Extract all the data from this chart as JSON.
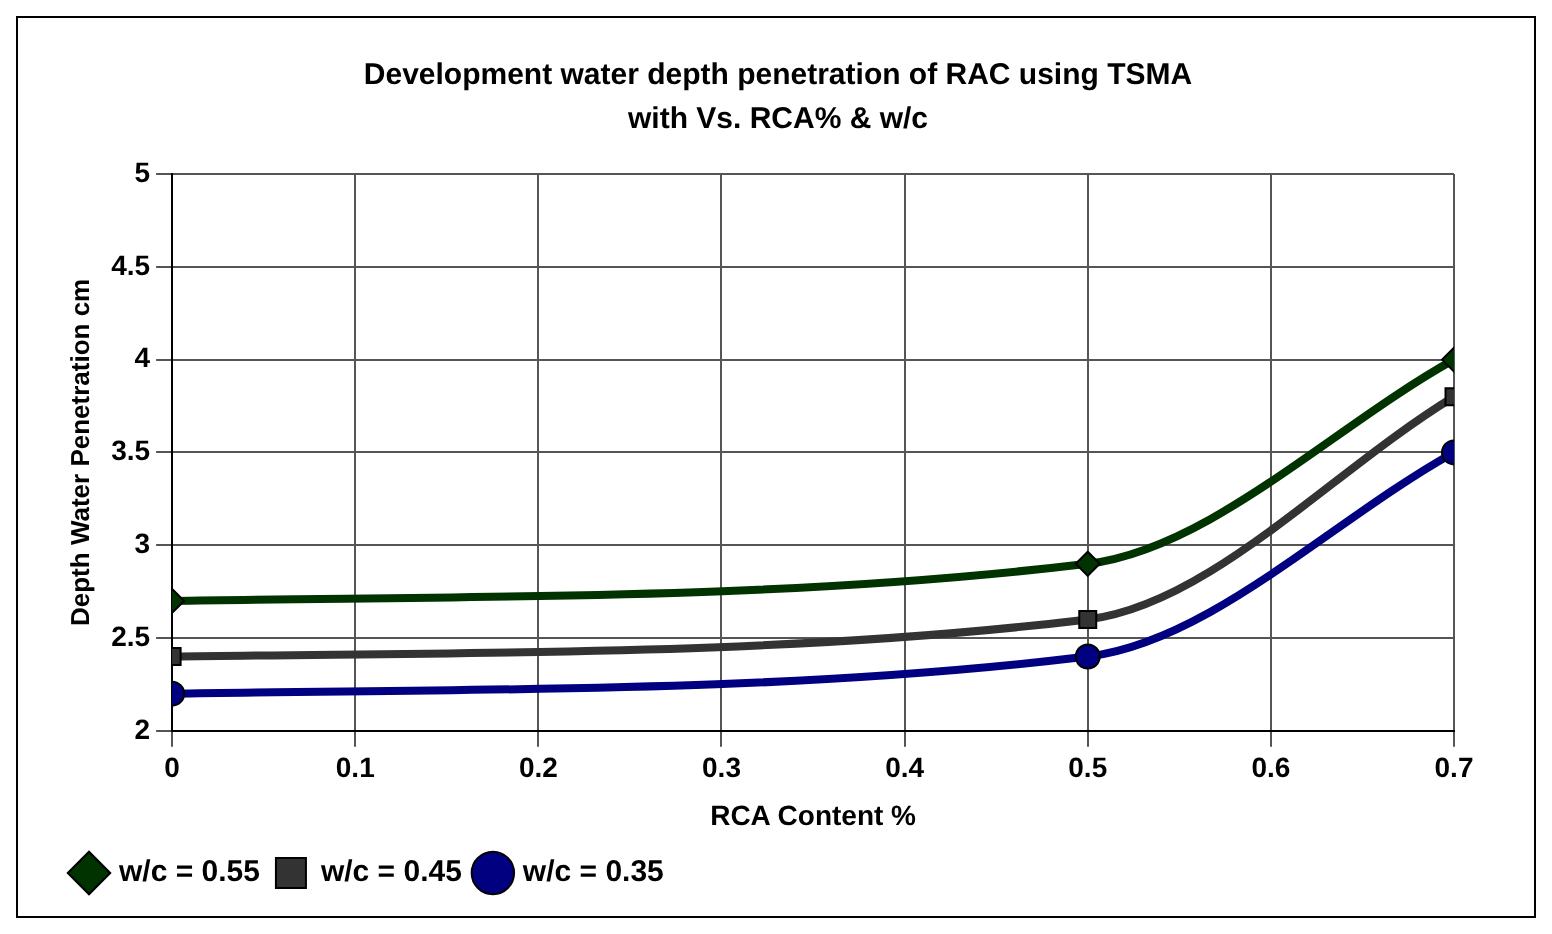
{
  "chart_data": {
    "type": "line",
    "title": "Development water depth penetration of RAC using TSMA with Vs. RCA% & w/c",
    "xlabel": "RCA Content %",
    "ylabel": "Depth Water Penetration cm",
    "x": [
      0,
      0.5,
      0.7
    ],
    "series": [
      {
        "name": "w/c = 0.55",
        "color": "#003300",
        "marker": "diamond",
        "values": [
          2.7,
          2.9,
          4.0
        ]
      },
      {
        "name": "w/c = 0.45",
        "color": "#333333",
        "marker": "square",
        "values": [
          2.4,
          2.6,
          3.8
        ]
      },
      {
        "name": "w/c = 0.35",
        "color": "#000080",
        "marker": "circle",
        "values": [
          2.2,
          2.4,
          3.5
        ]
      }
    ],
    "xlim": [
      0,
      0.7
    ],
    "xticks": [
      0,
      0.1,
      0.2,
      0.3,
      0.4,
      0.5,
      0.6,
      0.7
    ],
    "ylim": [
      2,
      5
    ],
    "yticks": [
      2,
      2.5,
      3,
      3.5,
      4,
      4.5,
      5
    ],
    "grid": true,
    "legend": "bottom",
    "line_style": "solid"
  }
}
